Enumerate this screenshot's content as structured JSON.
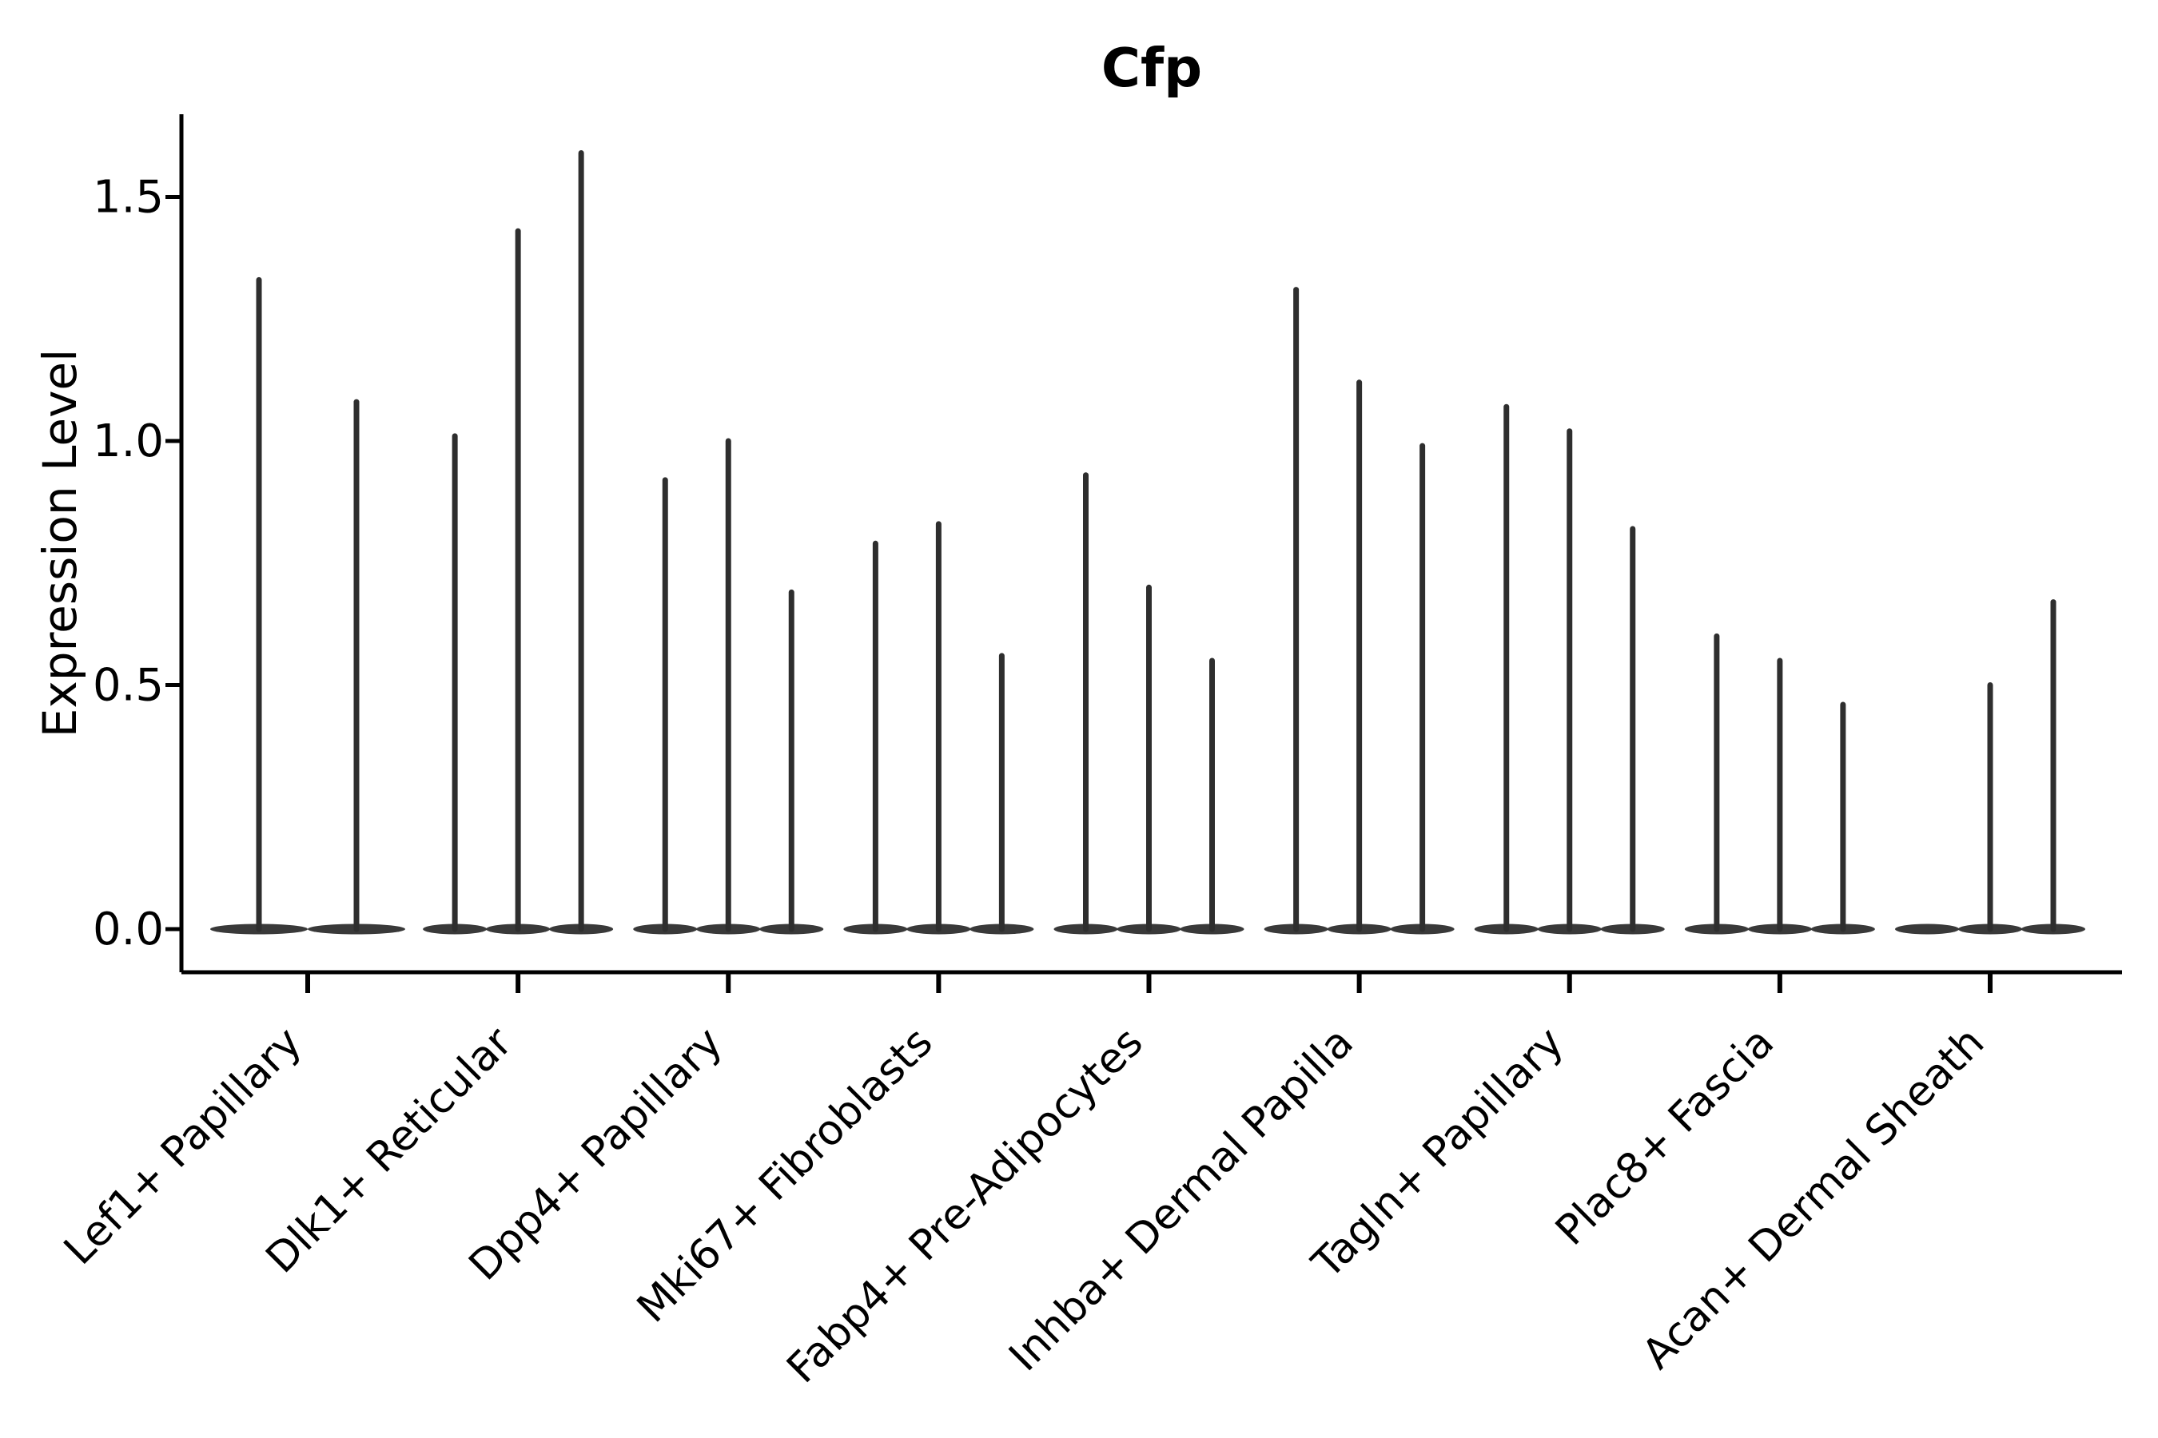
{
  "title": "Cfp",
  "chart_data": {
    "type": "violin",
    "title": "Cfp",
    "xlabel": "",
    "ylabel": "Expression Level",
    "ytick_labels": [
      "0.0",
      "0.5",
      "1.0",
      "1.5"
    ],
    "ylim": [
      -0.09,
      1.67
    ],
    "grid": false,
    "legend_position": "none",
    "description": "Needle-thin violins (nearly all mass at 0 with a thin tail up to the max expression value); each category holds 2-3 dodged violins; values are the tail top (max expression level).",
    "categories": [
      "Lef1+ Papillary",
      "Dlk1+ Reticular",
      "Dpp4+ Papillary",
      "Mki67+ Fibroblasts",
      "Fabp4+ Pre-Adipocytes",
      "Inhba+ Dermal Papilla",
      "Tagln+ Papillary",
      "Plac8+ Fascia",
      "Acan+ Dermal Sheath"
    ],
    "groups": [
      {
        "category": "Lef1+ Papillary",
        "violin_max_values": [
          1.33,
          1.08
        ]
      },
      {
        "category": "Dlk1+ Reticular",
        "violin_max_values": [
          1.01,
          1.43,
          1.59
        ]
      },
      {
        "category": "Dpp4+ Papillary",
        "violin_max_values": [
          0.92,
          1.0,
          0.69
        ]
      },
      {
        "category": "Mki67+ Fibroblasts",
        "violin_max_values": [
          0.79,
          0.83,
          0.56
        ]
      },
      {
        "category": "Fabp4+ Pre-Adipocytes",
        "violin_max_values": [
          0.93,
          0.7,
          0.55
        ]
      },
      {
        "category": "Inhba+ Dermal Papilla",
        "violin_max_values": [
          1.31,
          1.12,
          0.99
        ]
      },
      {
        "category": "Tagln+ Papillary",
        "violin_max_values": [
          1.07,
          1.02,
          0.82
        ]
      },
      {
        "category": "Plac8+ Fascia",
        "violin_max_values": [
          0.6,
          0.55,
          0.46
        ]
      },
      {
        "category": "Acan+ Dermal Sheath",
        "violin_max_values": [
          0.0,
          0.5,
          0.67
        ]
      }
    ],
    "colors": {
      "violin": "#2e2e2e",
      "axis": "#000000",
      "text": "#000000",
      "background": "#ffffff"
    }
  }
}
